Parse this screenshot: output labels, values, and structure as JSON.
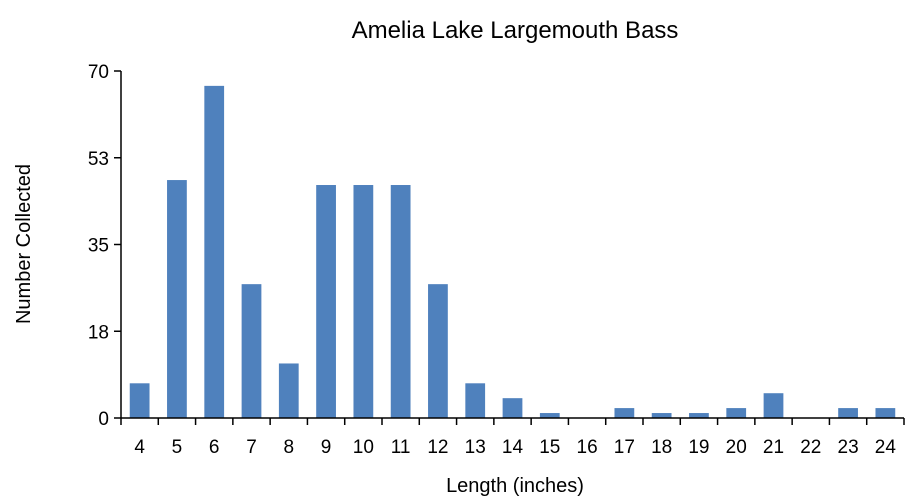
{
  "chart_data": {
    "type": "bar",
    "title": "Amelia Lake Largemouth Bass",
    "xlabel": "Length (inches)",
    "ylabel": "Number Collected",
    "ylim": [
      0,
      70
    ],
    "yticks": [
      "0",
      "18",
      "35",
      "53",
      "70"
    ],
    "ytick_values": [
      0,
      17.5,
      35,
      52.5,
      70
    ],
    "categories": [
      "4",
      "5",
      "6",
      "7",
      "8",
      "9",
      "10",
      "11",
      "12",
      "13",
      "14",
      "15",
      "16",
      "17",
      "18",
      "19",
      "20",
      "21",
      "22",
      "23",
      "24"
    ],
    "values": [
      7,
      48,
      67,
      27,
      11,
      47,
      47,
      47,
      27,
      7,
      4,
      1,
      0,
      2,
      1,
      1,
      2,
      5,
      0,
      2,
      2
    ],
    "bar_color": "#4f81bd",
    "grid": false,
    "legend": "none"
  }
}
